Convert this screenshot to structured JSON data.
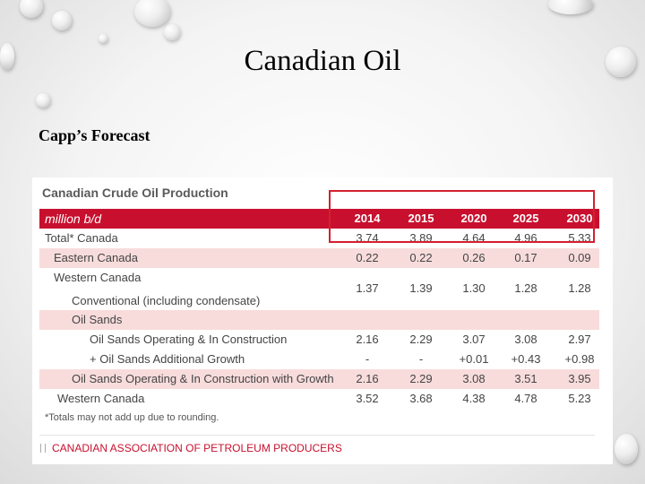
{
  "slide": {
    "title": "Canadian Oil",
    "subtitle": "Capp’s Forecast"
  },
  "table": {
    "heading": "Canadian Crude Oil Production",
    "unit_label": "million b/d",
    "years": [
      "2014",
      "2015",
      "2020",
      "2025",
      "2030"
    ],
    "rows": [
      {
        "label": "Total* Canada",
        "values": [
          "3.74",
          "3.89",
          "4.64",
          "4.96",
          "5.33"
        ]
      },
      {
        "label": "Eastern Canada",
        "values": [
          "0.22",
          "0.22",
          "0.26",
          "0.17",
          "0.09"
        ]
      },
      {
        "label": "Western Canada",
        "values": [
          "",
          "",
          "",
          "",
          ""
        ]
      },
      {
        "label": "Conventional (including condensate)",
        "values": [
          "1.37",
          "1.39",
          "1.30",
          "1.28",
          "1.28"
        ]
      },
      {
        "label": "Oil Sands",
        "values": [
          "",
          "",
          "",
          "",
          ""
        ]
      },
      {
        "label": "Oil Sands Operating & In Construction",
        "values": [
          "2.16",
          "2.29",
          "3.07",
          "3.08",
          "2.97"
        ]
      },
      {
        "label": "+ Oil Sands Additional Growth",
        "values": [
          "-",
          "-",
          "+0.01",
          "+0.43",
          "+0.98"
        ]
      },
      {
        "label": "Oil Sands Operating & In Construction with Growth",
        "values": [
          "2.16",
          "2.29",
          "3.08",
          "3.51",
          "3.95"
        ]
      },
      {
        "label": "Western Canada",
        "values": [
          "3.52",
          "3.68",
          "4.38",
          "4.78",
          "5.23"
        ]
      }
    ],
    "note": "*Totals may not add up due to rounding.",
    "source": "CANADIAN ASSOCIATION OF PETROLEUM PRODUCERS",
    "colors": {
      "header": "#c8102e",
      "stripe": "#f8dcdc",
      "highlight": "#d42030"
    }
  }
}
